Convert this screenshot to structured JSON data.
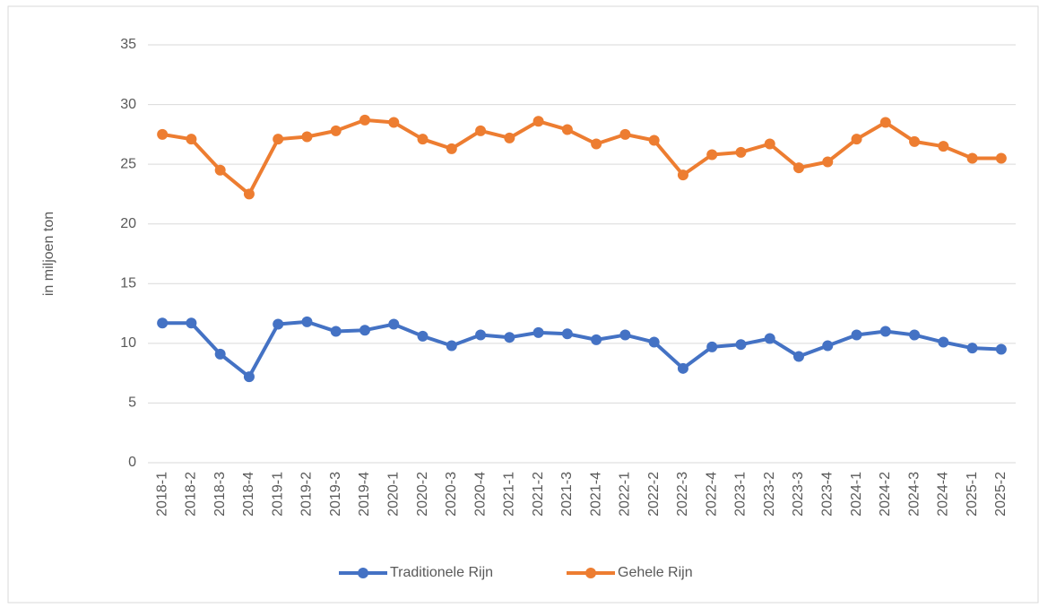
{
  "chart_data": {
    "type": "line",
    "y_label": "in miljoen ton",
    "categories": [
      "2018-1",
      "2018-2",
      "2018-3",
      "2018-4",
      "2019-1",
      "2019-2",
      "2019-3",
      "2019-4",
      "2020-1",
      "2020-2",
      "2020-3",
      "2020-4",
      "2021-1",
      "2021-2",
      "2021-3",
      "2021-4",
      "2022-1",
      "2022-2",
      "2022-3",
      "2022-4",
      "2023-1",
      "2023-2",
      "2023-3",
      "2023-4",
      "2024-1",
      "2024-2",
      "2024-3",
      "2024-4",
      "2025-1",
      "2025-2"
    ],
    "series": [
      {
        "name": "Traditionele Rijn",
        "color": "#4472c4",
        "values": [
          11.7,
          11.7,
          9.1,
          7.2,
          11.6,
          11.8,
          11.0,
          11.1,
          11.6,
          10.6,
          9.8,
          10.7,
          10.5,
          10.9,
          10.8,
          10.3,
          10.7,
          10.1,
          7.9,
          9.7,
          9.9,
          10.4,
          8.9,
          9.8,
          10.7,
          11.0,
          10.7,
          10.1,
          9.6,
          9.5
        ]
      },
      {
        "name": "Gehele Rijn",
        "color": "#ed7d31",
        "values": [
          27.5,
          27.1,
          24.5,
          22.5,
          27.1,
          27.3,
          27.8,
          28.7,
          28.5,
          27.1,
          26.3,
          27.8,
          27.2,
          28.6,
          27.9,
          26.7,
          27.5,
          27.0,
          24.1,
          25.8,
          26.0,
          26.7,
          24.7,
          25.2,
          27.1,
          28.5,
          26.9,
          26.5,
          25.5,
          25.5
        ]
      }
    ],
    "ylim": [
      0,
      35
    ],
    "yticks": [
      0,
      5,
      10,
      15,
      20,
      25,
      30,
      35
    ],
    "grid": true,
    "legend": "bottom"
  }
}
